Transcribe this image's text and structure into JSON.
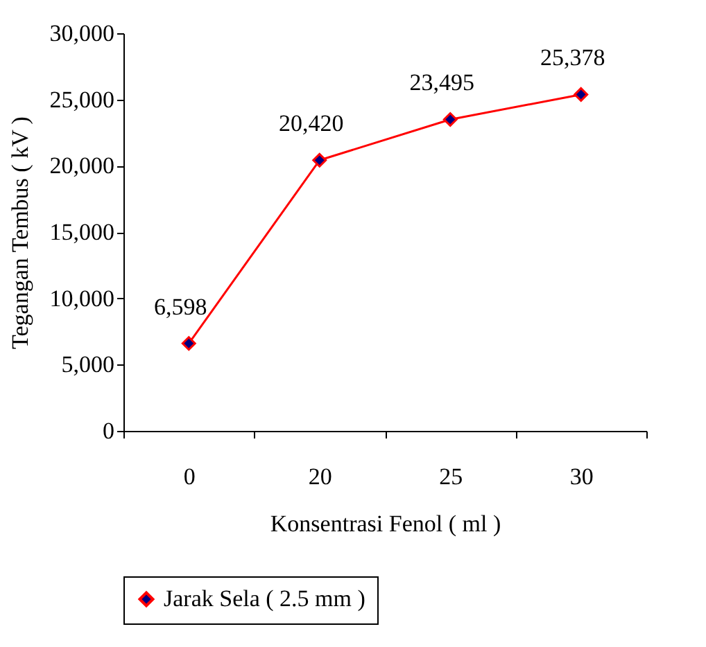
{
  "chart_data": {
    "type": "line",
    "xlabel": "Konsentrasi Fenol ( ml )",
    "ylabel": "Tegangan Tembus ( kV )",
    "categories": [
      "0",
      "20",
      "25",
      "30"
    ],
    "series": [
      {
        "name": "Jarak Sela ( 2.5 mm )",
        "color": "#ff0000",
        "values": [
          6598,
          20420,
          23495,
          25378
        ],
        "value_labels": [
          "6,598",
          "20,420",
          "23,495",
          "25,378"
        ]
      }
    ],
    "ylim": [
      0,
      30000
    ],
    "yticks": [
      0,
      {
        "value": 5000,
        "label": "5,000"
      },
      {
        "value": 10000,
        "label": "10,000"
      },
      {
        "value": 15000,
        "label": "15,000"
      },
      {
        "value": 20000,
        "label": "20,000"
      },
      {
        "value": 25000,
        "label": "25,000"
      },
      {
        "value": 30000,
        "label": "30,000"
      }
    ],
    "marker": "diamond",
    "legend": "bottom",
    "grid": false
  }
}
